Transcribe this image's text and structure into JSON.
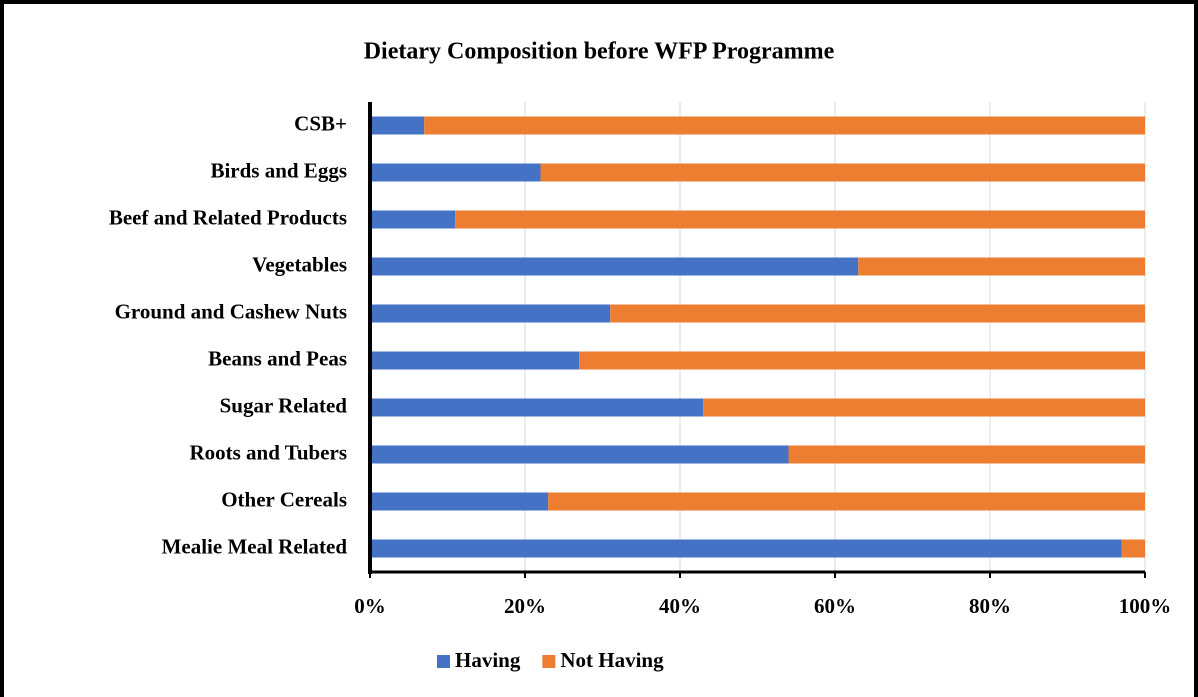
{
  "chart_data": {
    "type": "stacked_bar_horizontal",
    "title": "Dietary Composition before WFP Programme",
    "categories": [
      "CSB+",
      "Birds and Eggs",
      "Beef and Related Products",
      "Vegetables",
      "Ground and Cashew Nuts",
      "Beans and Peas",
      "Sugar Related",
      "Roots and Tubers",
      "Other Cereals",
      "Mealie Meal Related"
    ],
    "series": [
      {
        "name": "Having",
        "color": "#4472c4",
        "values": [
          7,
          22,
          11,
          63,
          31,
          27,
          43,
          54,
          23,
          97
        ]
      },
      {
        "name": "Not Having",
        "color": "#ed7d31",
        "values": [
          93,
          78,
          89,
          37,
          69,
          73,
          57,
          46,
          77,
          3
        ]
      }
    ],
    "xlim": [
      0,
      100
    ],
    "xticks": [
      {
        "value": 0,
        "label": "0%"
      },
      {
        "value": 20,
        "label": "20%"
      },
      {
        "value": 40,
        "label": "40%"
      },
      {
        "value": 60,
        "label": "60%"
      },
      {
        "value": 80,
        "label": "80%"
      },
      {
        "value": 100,
        "label": "100%"
      }
    ],
    "grid": true,
    "legend": "bottom"
  }
}
